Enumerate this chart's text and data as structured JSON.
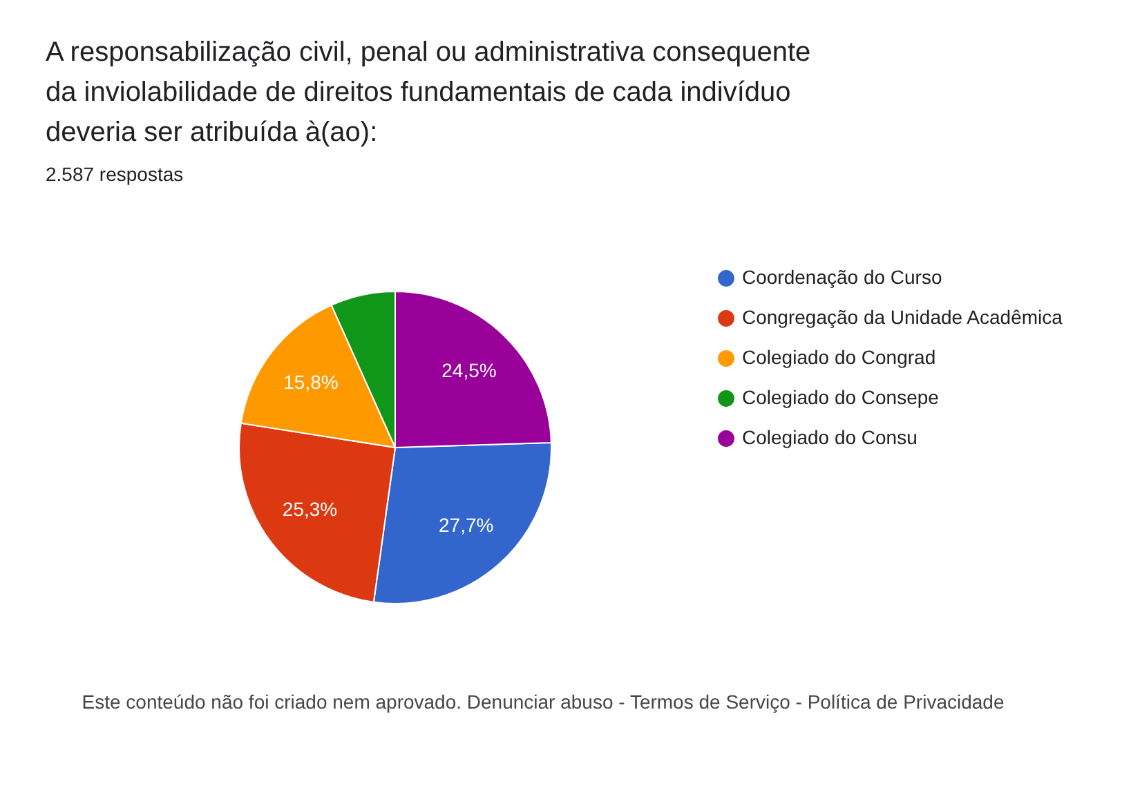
{
  "chart_data": {
    "type": "pie",
    "title": "A responsabilização civil, penal ou administrativa consequente da inviolabilidade de direitos fundamentais de cada indivíduo deveria ser atribuída à(ao):",
    "subtitle": "2.587 respostas",
    "categories": [
      "Coordenação do Curso",
      "Congregação da Unidade Acadêmica",
      "Colegiado do Congrad",
      "Colegiado do Consepe",
      "Colegiado do Consu"
    ],
    "values": [
      27.7,
      25.3,
      15.8,
      6.7,
      24.5
    ],
    "value_labels": [
      "27,7%",
      "25,3%",
      "15,8%",
      null,
      "24,5%"
    ],
    "colors": [
      "#3366cc",
      "#dc3912",
      "#ff9900",
      "#109618",
      "#990099"
    ],
    "legend": "right",
    "annotations": [
      "Este conteúdo não foi criado nem aprovado. Denunciar abuso - Termos de Serviço - Política de Privacidade"
    ]
  }
}
